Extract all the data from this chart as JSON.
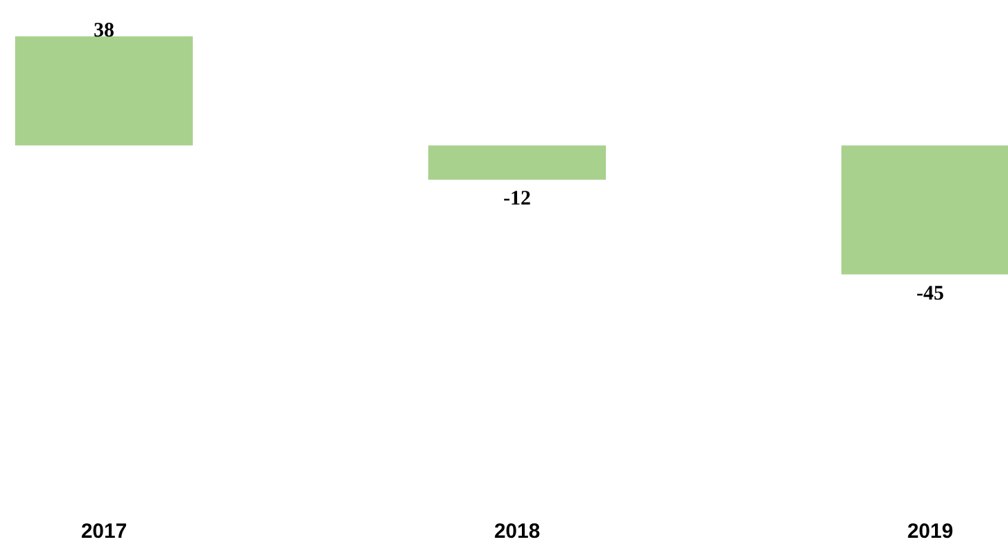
{
  "chart_data": {
    "type": "bar",
    "categories": [
      "2017",
      "2018",
      "2019"
    ],
    "values": [
      38,
      -12,
      -45
    ],
    "color": "#a9d18e",
    "data_labels": true
  }
}
